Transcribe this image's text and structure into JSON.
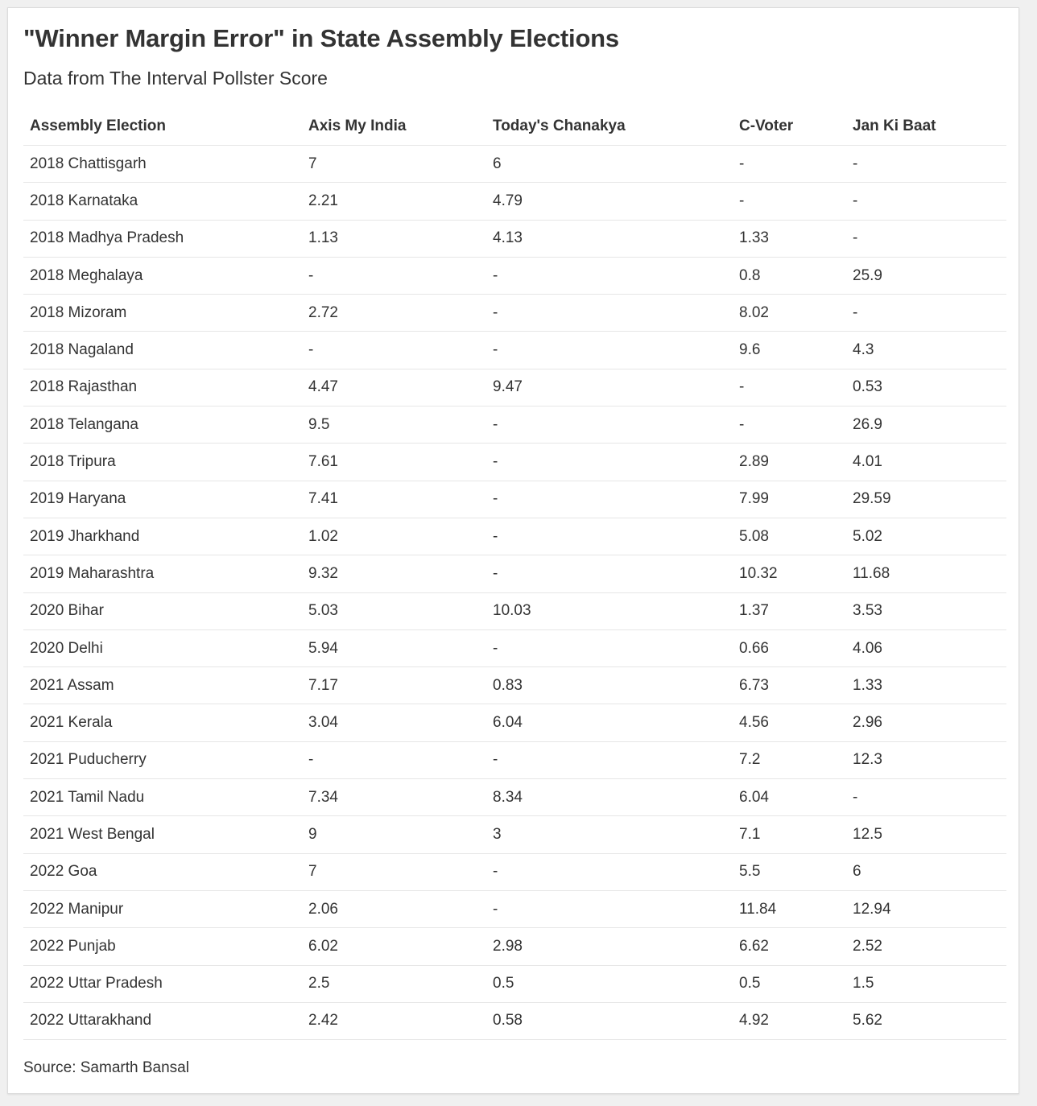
{
  "page": {
    "title": "\"Winner Margin Error\" in State Assembly Elections",
    "subtitle": "Data from The Interval Pollster Score",
    "source": "Source: Samarth Bansal"
  },
  "chart_data": {
    "type": "table",
    "title": "\"Winner Margin Error\" in State Assembly Elections",
    "subtitle": "Data from The Interval Pollster Score",
    "columns": [
      "Assembly Election",
      "Axis My India",
      "Today's Chanakya",
      "C-Voter",
      "Jan Ki Baat"
    ],
    "rows": [
      [
        "2018 Chattisgarh",
        "7",
        "6",
        "-",
        "-"
      ],
      [
        "2018 Karnataka",
        "2.21",
        "4.79",
        "-",
        "-"
      ],
      [
        "2018 Madhya Pradesh",
        "1.13",
        "4.13",
        "1.33",
        "-"
      ],
      [
        "2018 Meghalaya",
        "-",
        "-",
        "0.8",
        "25.9"
      ],
      [
        "2018 Mizoram",
        "2.72",
        "-",
        "8.02",
        "-"
      ],
      [
        "2018 Nagaland",
        "-",
        "-",
        "9.6",
        "4.3"
      ],
      [
        "2018 Rajasthan",
        "4.47",
        "9.47",
        "-",
        "0.53"
      ],
      [
        "2018 Telangana",
        "9.5",
        "-",
        "-",
        "26.9"
      ],
      [
        "2018 Tripura",
        "7.61",
        "-",
        "2.89",
        "4.01"
      ],
      [
        "2019 Haryana",
        "7.41",
        "-",
        "7.99",
        "29.59"
      ],
      [
        "2019 Jharkhand",
        "1.02",
        "-",
        "5.08",
        "5.02"
      ],
      [
        "2019 Maharashtra",
        "9.32",
        "-",
        "10.32",
        "11.68"
      ],
      [
        "2020 Bihar",
        "5.03",
        "10.03",
        "1.37",
        "3.53"
      ],
      [
        "2020 Delhi",
        "5.94",
        "-",
        "0.66",
        "4.06"
      ],
      [
        "2021 Assam",
        "7.17",
        "0.83",
        "6.73",
        "1.33"
      ],
      [
        "2021 Kerala",
        "3.04",
        "6.04",
        "4.56",
        "2.96"
      ],
      [
        "2021 Puducherry",
        "-",
        "-",
        "7.2",
        "12.3"
      ],
      [
        "2021 Tamil Nadu",
        "7.34",
        "8.34",
        "6.04",
        "-"
      ],
      [
        "2021 West Bengal",
        "9",
        "3",
        "7.1",
        "12.5"
      ],
      [
        "2022 Goa",
        "7",
        "-",
        "5.5",
        "6"
      ],
      [
        "2022 Manipur",
        "2.06",
        "-",
        "11.84",
        "12.94"
      ],
      [
        "2022 Punjab",
        "6.02",
        "2.98",
        "6.62",
        "2.52"
      ],
      [
        "2022 Uttar Pradesh",
        "2.5",
        "0.5",
        "0.5",
        "1.5"
      ],
      [
        "2022 Uttarakhand",
        "2.42",
        "0.58",
        "4.92",
        "5.62"
      ]
    ],
    "source": "Source: Samarth Bansal"
  }
}
